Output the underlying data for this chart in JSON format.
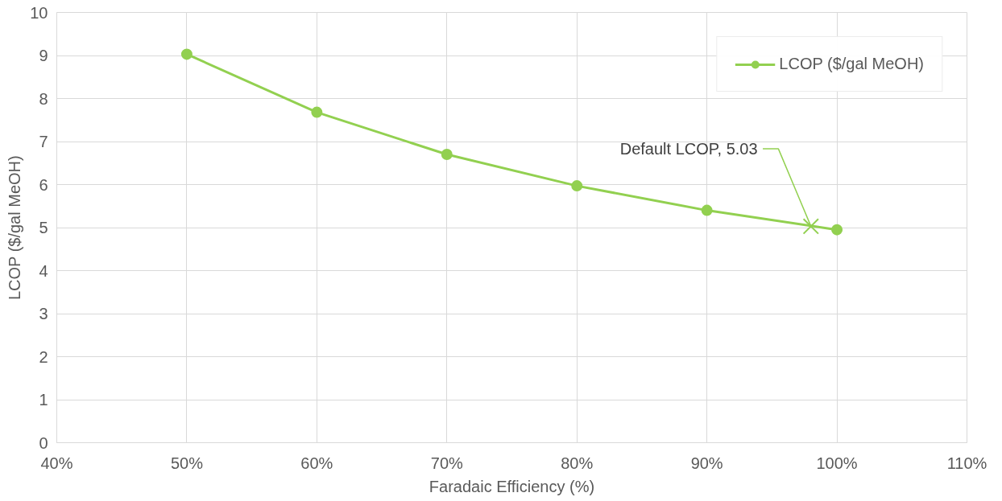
{
  "chart_data": {
    "type": "line",
    "xlabel": "Faradaic Efficiency (%)",
    "ylabel": "LCOP ($/gal MeOH)",
    "x": [
      50,
      60,
      70,
      80,
      90,
      100
    ],
    "series": [
      {
        "name": "LCOP ($/gal MeOH)",
        "color": "#92d050",
        "values": [
          9.03,
          7.68,
          6.7,
          5.97,
          5.4,
          4.95
        ],
        "marker": "circle"
      },
      {
        "type": "scatter",
        "color": "#92d050",
        "x": [
          98
        ],
        "values": [
          5.03
        ],
        "marker": "cross"
      }
    ],
    "annotations": [
      {
        "text": "Default LCOP, 5.03",
        "x": 98,
        "y": 5.03
      }
    ],
    "xlim": [
      40,
      110
    ],
    "xticks": [
      {
        "value": 40,
        "label": "40%"
      },
      {
        "value": 50,
        "label": "50%"
      },
      {
        "value": 60,
        "label": "60%"
      },
      {
        "value": 70,
        "label": "70%"
      },
      {
        "value": 80,
        "label": "80%"
      },
      {
        "value": 90,
        "label": "90%"
      },
      {
        "value": 100,
        "label": "100%"
      },
      {
        "value": 110,
        "label": "110%"
      }
    ],
    "ylim": [
      0,
      10
    ],
    "yticks": [
      0,
      1,
      2,
      3,
      4,
      5,
      6,
      7,
      8,
      9,
      10
    ],
    "grid": true,
    "legend": "top right",
    "line_style": "solid"
  }
}
